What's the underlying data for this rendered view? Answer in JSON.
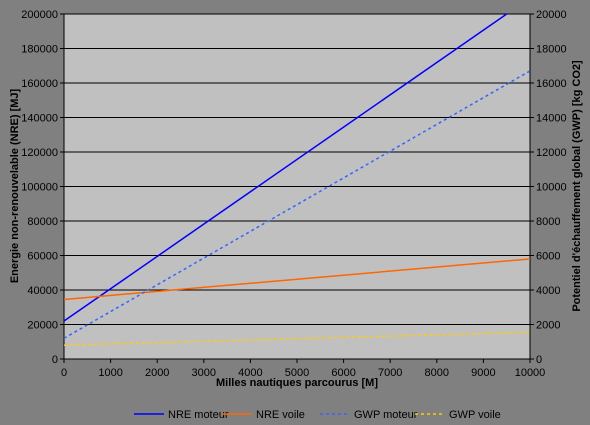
{
  "chart_data": {
    "type": "line",
    "xlabel": "Milles nautiques parcourus [M]",
    "ylabel_left": "Energie non-renouvelable (NRE) [MJ]",
    "ylabel_right": "Potentiel d'échauffement global (GWP) [kg CO2]",
    "xlim": [
      0,
      10000
    ],
    "ylim_left": [
      0,
      200000
    ],
    "ylim_right": [
      0,
      20000
    ],
    "x_ticks": [
      "0",
      "1000",
      "2000",
      "3000",
      "4000",
      "5000",
      "6000",
      "7000",
      "8000",
      "9000",
      "10000"
    ],
    "y_ticks_left": [
      "0",
      "20000",
      "40000",
      "60000",
      "80000",
      "100000",
      "120000",
      "140000",
      "160000",
      "180000",
      "200000"
    ],
    "y_ticks_right": [
      "0",
      "2000",
      "4000",
      "6000",
      "8000",
      "10000",
      "12000",
      "14000",
      "16000",
      "18000",
      "20000"
    ],
    "grid": "horizontal",
    "legend_position": "bottom",
    "series": [
      {
        "name": "NRE moteur",
        "axis": "left",
        "x": [
          0,
          9500
        ],
        "y": [
          22000,
          200000
        ],
        "color": "#0000ff",
        "dash": "solid"
      },
      {
        "name": "NRE voile",
        "axis": "left",
        "x": [
          0,
          10000
        ],
        "y": [
          34500,
          58000
        ],
        "color": "#ff6600",
        "dash": "solid"
      },
      {
        "name": "GWP moteur",
        "axis": "right",
        "x": [
          0,
          10000
        ],
        "y": [
          1200,
          16700
        ],
        "color": "#3366ff",
        "dash": "dotted"
      },
      {
        "name": "GWP voile",
        "axis": "right",
        "x": [
          0,
          10000
        ],
        "y": [
          800,
          1550
        ],
        "color": "#ffcc00",
        "dash": "dotted"
      }
    ]
  }
}
